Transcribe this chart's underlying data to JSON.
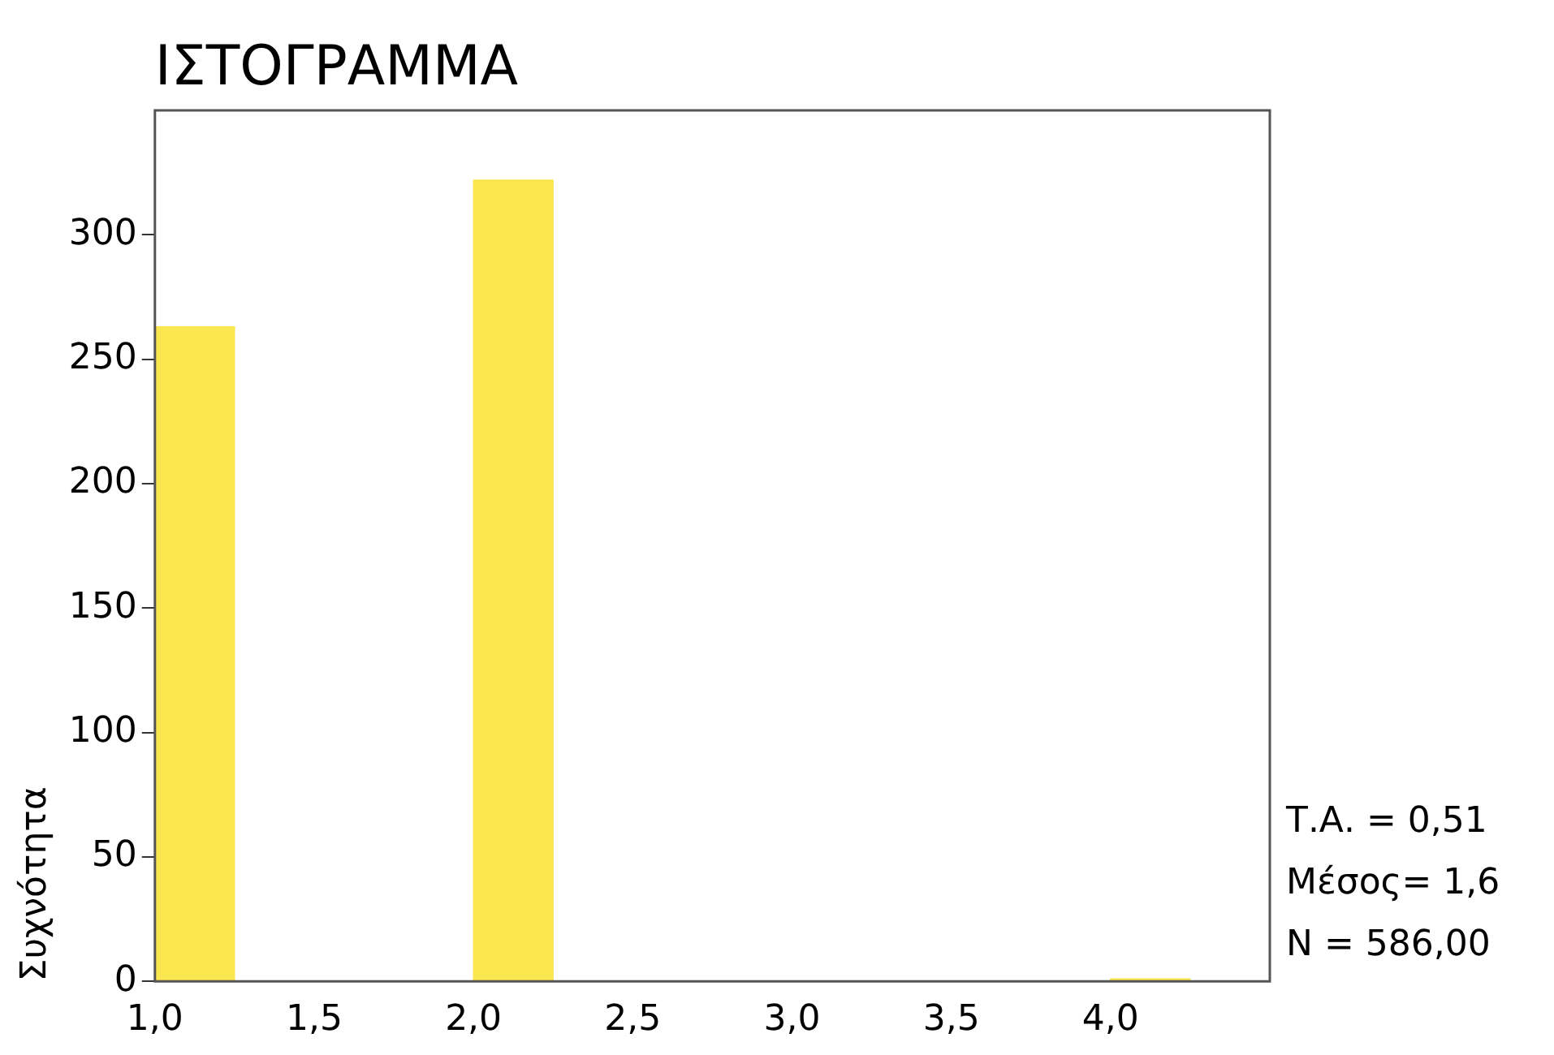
{
  "chart_data": {
    "type": "histogram",
    "title": "ΙΣΤΟΓΡΑΜΜΑ",
    "ylabel": "Συχνότητα",
    "bins": [
      1.0,
      1.25,
      1.5,
      1.75,
      2.0,
      2.25,
      2.5,
      2.75,
      3.0,
      3.25,
      3.5,
      3.75,
      4.0,
      4.25
    ],
    "values": [
      263,
      0,
      0,
      0,
      322,
      0,
      0,
      0,
      0,
      0,
      0,
      0,
      1
    ],
    "color": "#fae64f",
    "xlim": [
      1.0,
      4.5
    ],
    "xticks": [
      {
        "value": 1.0,
        "label": "1,0"
      },
      {
        "value": 1.5,
        "label": "1,5"
      },
      {
        "value": 2.0,
        "label": "2,0"
      },
      {
        "value": 2.5,
        "label": "2,5"
      },
      {
        "value": 3.0,
        "label": "3,0"
      },
      {
        "value": 3.5,
        "label": "3,5"
      },
      {
        "value": 4.0,
        "label": "4,0"
      }
    ],
    "ylim": [
      0,
      350
    ],
    "yticks": [
      0,
      50,
      100,
      150,
      200,
      250,
      300
    ],
    "annotations": [
      "Τ.Α. = 0,51",
      "Μέσος= 1,6",
      "N = 586,00"
    ],
    "grid": false,
    "legend": false
  }
}
